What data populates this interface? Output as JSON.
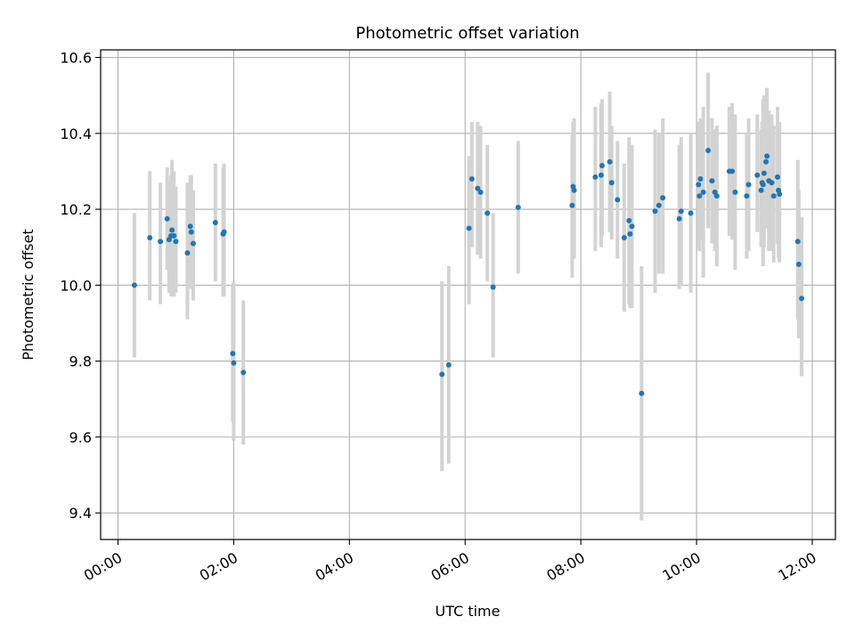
{
  "chart_data": {
    "type": "scatter",
    "title": "Photometric offset variation",
    "xlabel": "UTC time",
    "ylabel": "Photometric offset",
    "xlim": [
      "-00:18",
      "12:24"
    ],
    "ylim": [
      9.33,
      10.62
    ],
    "x_ticks": [
      "00:00",
      "02:00",
      "04:00",
      "06:00",
      "08:00",
      "10:00",
      "12:00"
    ],
    "y_ticks": [
      "9.4",
      "9.6",
      "9.8",
      "10.0",
      "10.2",
      "10.4",
      "10.6"
    ],
    "grid": true,
    "marker_color": "#1f77b4",
    "errorbar_color": "#d3d3d3",
    "points": [
      {
        "x": "00:17",
        "y": 10.0,
        "ylow": 9.81,
        "yhigh": 10.19
      },
      {
        "x": "00:33",
        "y": 10.125,
        "ylow": 9.96,
        "yhigh": 10.3
      },
      {
        "x": "00:44",
        "y": 10.115,
        "ylow": 9.95,
        "yhigh": 10.27
      },
      {
        "x": "00:51",
        "y": 10.175,
        "ylow": 10.04,
        "yhigh": 10.31
      },
      {
        "x": "00:53",
        "y": 10.12,
        "ylow": 9.98,
        "yhigh": 10.27
      },
      {
        "x": "00:55",
        "y": 10.13,
        "ylow": 9.97,
        "yhigh": 10.29
      },
      {
        "x": "00:56",
        "y": 10.145,
        "ylow": 9.99,
        "yhigh": 10.33
      },
      {
        "x": "00:58",
        "y": 10.13,
        "ylow": 9.97,
        "yhigh": 10.3
      },
      {
        "x": "01:00",
        "y": 10.115,
        "ylow": 9.98,
        "yhigh": 10.26
      },
      {
        "x": "01:12",
        "y": 10.085,
        "ylow": 9.91,
        "yhigh": 10.27
      },
      {
        "x": "01:15",
        "y": 10.155,
        "ylow": 10.01,
        "yhigh": 10.29
      },
      {
        "x": "01:16",
        "y": 10.14,
        "ylow": 9.99,
        "yhigh": 10.29
      },
      {
        "x": "01:18",
        "y": 10.11,
        "ylow": 9.96,
        "yhigh": 10.25
      },
      {
        "x": "01:41",
        "y": 10.165,
        "ylow": 10.01,
        "yhigh": 10.32
      },
      {
        "x": "01:49",
        "y": 10.135,
        "ylow": 9.97,
        "yhigh": 10.31
      },
      {
        "x": "01:50",
        "y": 10.14,
        "ylow": 9.97,
        "yhigh": 10.32
      },
      {
        "x": "01:59",
        "y": 9.82,
        "ylow": 9.64,
        "yhigh": 10.0
      },
      {
        "x": "02:00",
        "y": 9.795,
        "ylow": 9.59,
        "yhigh": 10.01
      },
      {
        "x": "02:10",
        "y": 9.77,
        "ylow": 9.58,
        "yhigh": 9.96
      },
      {
        "x": "05:36",
        "y": 9.765,
        "ylow": 9.51,
        "yhigh": 10.01
      },
      {
        "x": "05:43",
        "y": 9.79,
        "ylow": 9.53,
        "yhigh": 10.05
      },
      {
        "x": "06:04",
        "y": 10.15,
        "ylow": 9.95,
        "yhigh": 10.34
      },
      {
        "x": "06:07",
        "y": 10.28,
        "ylow": 10.1,
        "yhigh": 10.43
      },
      {
        "x": "06:13",
        "y": 10.255,
        "ylow": 10.08,
        "yhigh": 10.43
      },
      {
        "x": "06:16",
        "y": 10.245,
        "ylow": 10.07,
        "yhigh": 10.42
      },
      {
        "x": "06:23",
        "y": 10.19,
        "ylow": 10.01,
        "yhigh": 10.37
      },
      {
        "x": "06:29",
        "y": 9.995,
        "ylow": 9.81,
        "yhigh": 10.19
      },
      {
        "x": "06:55",
        "y": 10.205,
        "ylow": 10.03,
        "yhigh": 10.38
      },
      {
        "x": "07:51",
        "y": 10.21,
        "ylow": 10.02,
        "yhigh": 10.4
      },
      {
        "x": "07:52",
        "y": 10.26,
        "ylow": 10.08,
        "yhigh": 10.43
      },
      {
        "x": "07:53",
        "y": 10.25,
        "ylow": 10.07,
        "yhigh": 10.44
      },
      {
        "x": "08:15",
        "y": 10.285,
        "ylow": 10.09,
        "yhigh": 10.47
      },
      {
        "x": "08:21",
        "y": 10.29,
        "ylow": 10.1,
        "yhigh": 10.48
      },
      {
        "x": "08:22",
        "y": 10.315,
        "ylow": 10.13,
        "yhigh": 10.49
      },
      {
        "x": "08:30",
        "y": 10.325,
        "ylow": 10.14,
        "yhigh": 10.51
      },
      {
        "x": "08:32",
        "y": 10.27,
        "ylow": 10.12,
        "yhigh": 10.42
      },
      {
        "x": "08:38",
        "y": 10.225,
        "ylow": 10.07,
        "yhigh": 10.38
      },
      {
        "x": "08:45",
        "y": 10.125,
        "ylow": 9.93,
        "yhigh": 10.32
      },
      {
        "x": "08:50",
        "y": 10.17,
        "ylow": 9.95,
        "yhigh": 10.39
      },
      {
        "x": "08:51",
        "y": 10.135,
        "ylow": 9.94,
        "yhigh": 10.33
      },
      {
        "x": "08:53",
        "y": 10.155,
        "ylow": 9.94,
        "yhigh": 10.37
      },
      {
        "x": "09:03",
        "y": 9.715,
        "ylow": 9.38,
        "yhigh": 10.05
      },
      {
        "x": "09:17",
        "y": 10.195,
        "ylow": 9.98,
        "yhigh": 10.41
      },
      {
        "x": "09:21",
        "y": 10.21,
        "ylow": 10.03,
        "yhigh": 10.4
      },
      {
        "x": "09:25",
        "y": 10.23,
        "ylow": 10.03,
        "yhigh": 10.44
      },
      {
        "x": "09:42",
        "y": 10.175,
        "ylow": 9.99,
        "yhigh": 10.37
      },
      {
        "x": "09:44",
        "y": 10.195,
        "ylow": 10.0,
        "yhigh": 10.39
      },
      {
        "x": "09:54",
        "y": 10.19,
        "ylow": 9.98,
        "yhigh": 10.4
      },
      {
        "x": "10:02",
        "y": 10.265,
        "ylow": 10.1,
        "yhigh": 10.43
      },
      {
        "x": "10:03",
        "y": 10.235,
        "ylow": 10.09,
        "yhigh": 10.38
      },
      {
        "x": "10:04",
        "y": 10.28,
        "ylow": 10.12,
        "yhigh": 10.44
      },
      {
        "x": "10:07",
        "y": 10.245,
        "ylow": 10.02,
        "yhigh": 10.47
      },
      {
        "x": "10:12",
        "y": 10.355,
        "ylow": 10.15,
        "yhigh": 10.56
      },
      {
        "x": "10:16",
        "y": 10.275,
        "ylow": 10.11,
        "yhigh": 10.44
      },
      {
        "x": "10:19",
        "y": 10.245,
        "ylow": 10.09,
        "yhigh": 10.41
      },
      {
        "x": "10:21",
        "y": 10.235,
        "ylow": 10.05,
        "yhigh": 10.42
      },
      {
        "x": "10:34",
        "y": 10.3,
        "ylow": 10.13,
        "yhigh": 10.47
      },
      {
        "x": "10:37",
        "y": 10.3,
        "ylow": 10.12,
        "yhigh": 10.48
      },
      {
        "x": "10:40",
        "y": 10.245,
        "ylow": 10.04,
        "yhigh": 10.45
      },
      {
        "x": "10:52",
        "y": 10.235,
        "ylow": 10.07,
        "yhigh": 10.4
      },
      {
        "x": "10:54",
        "y": 10.265,
        "ylow": 10.09,
        "yhigh": 10.44
      },
      {
        "x": "11:03",
        "y": 10.29,
        "ylow": 10.14,
        "yhigh": 10.45
      },
      {
        "x": "11:07",
        "y": 10.25,
        "ylow": 10.1,
        "yhigh": 10.41
      },
      {
        "x": "11:08",
        "y": 10.27,
        "ylow": 10.11,
        "yhigh": 10.43
      },
      {
        "x": "11:09",
        "y": 10.265,
        "ylow": 10.05,
        "yhigh": 10.49
      },
      {
        "x": "11:10",
        "y": 10.295,
        "ylow": 10.1,
        "yhigh": 10.5
      },
      {
        "x": "11:12",
        "y": 10.325,
        "ylow": 10.15,
        "yhigh": 10.49
      },
      {
        "x": "11:13",
        "y": 10.34,
        "ylow": 10.15,
        "yhigh": 10.52
      },
      {
        "x": "11:15",
        "y": 10.275,
        "ylow": 10.09,
        "yhigh": 10.46
      },
      {
        "x": "11:18",
        "y": 10.27,
        "ylow": 10.09,
        "yhigh": 10.45
      },
      {
        "x": "11:20",
        "y": 10.235,
        "ylow": 10.06,
        "yhigh": 10.42
      },
      {
        "x": "11:24",
        "y": 10.285,
        "ylow": 10.11,
        "yhigh": 10.47
      },
      {
        "x": "11:25",
        "y": 10.25,
        "ylow": 10.07,
        "yhigh": 10.43
      },
      {
        "x": "11:26",
        "y": 10.24,
        "ylow": 10.06,
        "yhigh": 10.43
      },
      {
        "x": "11:45",
        "y": 10.115,
        "ylow": 9.91,
        "yhigh": 10.33
      },
      {
        "x": "11:46",
        "y": 10.055,
        "ylow": 9.86,
        "yhigh": 10.25
      },
      {
        "x": "11:49",
        "y": 9.965,
        "ylow": 9.76,
        "yhigh": 10.18
      }
    ]
  }
}
